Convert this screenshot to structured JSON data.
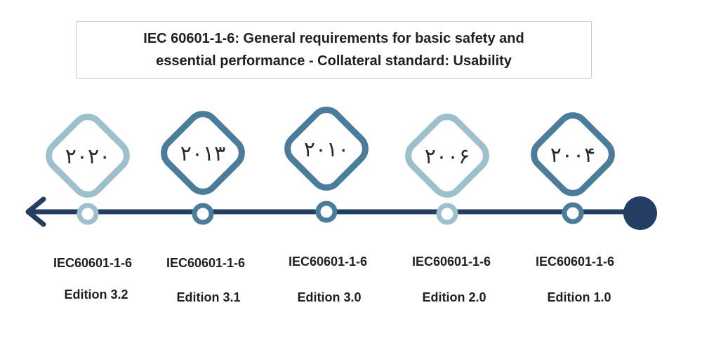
{
  "title": {
    "line1": "IEC 60601-1-6: General requirements for basic safety and",
    "line2": "essential performance - Collateral standard: Usability"
  },
  "colors": {
    "axis": "#243d63",
    "dark_accent": "#4b7c99",
    "light_accent": "#9ebfcc",
    "box_border": "#b7d3d6"
  },
  "milestones": [
    {
      "year": "۲۰۲۰",
      "standard": "IEC60601-1-6",
      "edition": "Edition 3.2",
      "shade": "light"
    },
    {
      "year": "۲۰۱۳",
      "standard": "IEC60601-1-6",
      "edition": "Edition 3.1",
      "shade": "dark"
    },
    {
      "year": "۲۰۱۰",
      "standard": "IEC60601-1-6",
      "edition": "Edition 3.0",
      "shade": "dark"
    },
    {
      "year": "۲۰۰۶",
      "standard": "IEC60601-1-6",
      "edition": "Edition 2.0",
      "shade": "light"
    },
    {
      "year": "۲۰۰۴",
      "standard": "IEC60601-1-6",
      "edition": "Edition 1.0",
      "shade": "dark"
    }
  ]
}
